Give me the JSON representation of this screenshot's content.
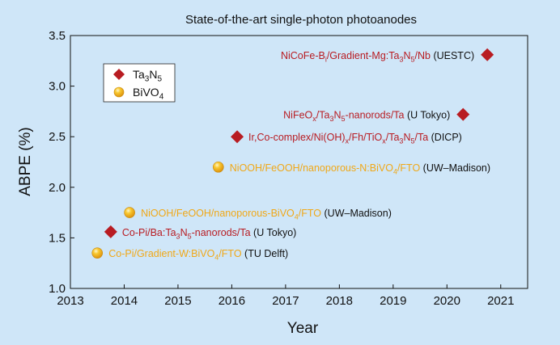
{
  "chart_data": {
    "type": "scatter",
    "title": "State-of-the-art single-photon photoanodes",
    "xlabel": "Year",
    "ylabel": "ABPE (%)",
    "xlim": [
      2013,
      2021.5
    ],
    "ylim": [
      1.0,
      3.5
    ],
    "x_ticks": [
      "2013",
      "2014",
      "2015",
      "2016",
      "2017",
      "2018",
      "2019",
      "2020",
      "2021"
    ],
    "y_ticks": [
      "1.0",
      "1.5",
      "2.0",
      "2.5",
      "3.0",
      "3.5"
    ],
    "grid": false,
    "legend_position": "top-left",
    "colors": {
      "Ta3N5": "#b81c22",
      "BiVO4": "#f0a818",
      "affiliation_text": "#111111",
      "background": "#cfe6f8"
    },
    "series": [
      {
        "key": "Ta3N5",
        "name": "Ta3N5",
        "legend_parts": [
          {
            "t": "Ta"
          },
          {
            "t": "3",
            "sub": true
          },
          {
            "t": "N"
          },
          {
            "t": "5",
            "sub": true
          }
        ],
        "marker": "diamond",
        "points": [
          {
            "x": 2020.75,
            "y": 3.31,
            "label": [
              {
                "t": "NiCoFe-B"
              },
              {
                "t": "i",
                "sub": true
              },
              {
                "t": "/Gradient-Mg:Ta"
              },
              {
                "t": "3",
                "sub": true
              },
              {
                "t": "N"
              },
              {
                "t": "5",
                "sub": true
              },
              {
                "t": "/Nb"
              }
            ],
            "affiliation": " (UESTC)",
            "label_side": "left"
          },
          {
            "x": 2020.3,
            "y": 2.72,
            "label": [
              {
                "t": "NiFeO"
              },
              {
                "t": "x",
                "sub": true
              },
              {
                "t": "/Ta"
              },
              {
                "t": "3",
                "sub": true
              },
              {
                "t": "N"
              },
              {
                "t": "5",
                "sub": true
              },
              {
                "t": "-nanorods/Ta"
              }
            ],
            "affiliation": " (U Tokyo)",
            "label_side": "left"
          },
          {
            "x": 2016.1,
            "y": 2.5,
            "label": [
              {
                "t": "Ir,Co-complex/Ni(OH)"
              },
              {
                "t": "x",
                "sub": true
              },
              {
                "t": "/Fh/TiO"
              },
              {
                "t": "x",
                "sub": true
              },
              {
                "t": "/Ta"
              },
              {
                "t": "3",
                "sub": true
              },
              {
                "t": "N"
              },
              {
                "t": "5",
                "sub": true
              },
              {
                "t": "/Ta"
              }
            ],
            "affiliation": " (DICP)",
            "label_side": "right"
          },
          {
            "x": 2013.75,
            "y": 1.56,
            "label": [
              {
                "t": "Co-Pi/Ba:Ta"
              },
              {
                "t": "3",
                "sub": true
              },
              {
                "t": "N"
              },
              {
                "t": "5",
                "sub": true
              },
              {
                "t": "-nanorods/Ta"
              }
            ],
            "affiliation": " (U Tokyo)",
            "label_side": "right"
          }
        ]
      },
      {
        "key": "BiVO4",
        "name": "BiVO4",
        "legend_parts": [
          {
            "t": "BiVO"
          },
          {
            "t": "4",
            "sub": true
          }
        ],
        "marker": "circle",
        "points": [
          {
            "x": 2015.75,
            "y": 2.2,
            "label": [
              {
                "t": "NiOOH/FeOOH/nanoporous-N:BiVO"
              },
              {
                "t": "4",
                "sub": true
              },
              {
                "t": "/FTO"
              }
            ],
            "affiliation": " (UW–Madison)",
            "label_side": "right"
          },
          {
            "x": 2014.1,
            "y": 1.75,
            "label": [
              {
                "t": "NiOOH/FeOOH/nanoporous-BiVO"
              },
              {
                "t": "4",
                "sub": true
              },
              {
                "t": "/FTO"
              }
            ],
            "affiliation": " (UW–Madison)",
            "label_side": "right"
          },
          {
            "x": 2013.5,
            "y": 1.35,
            "label": [
              {
                "t": "Co-Pi/Gradient-W:BiVO"
              },
              {
                "t": "4",
                "sub": true
              },
              {
                "t": "/FTO"
              }
            ],
            "affiliation": " (TU Delft)",
            "label_side": "right"
          }
        ]
      }
    ]
  }
}
